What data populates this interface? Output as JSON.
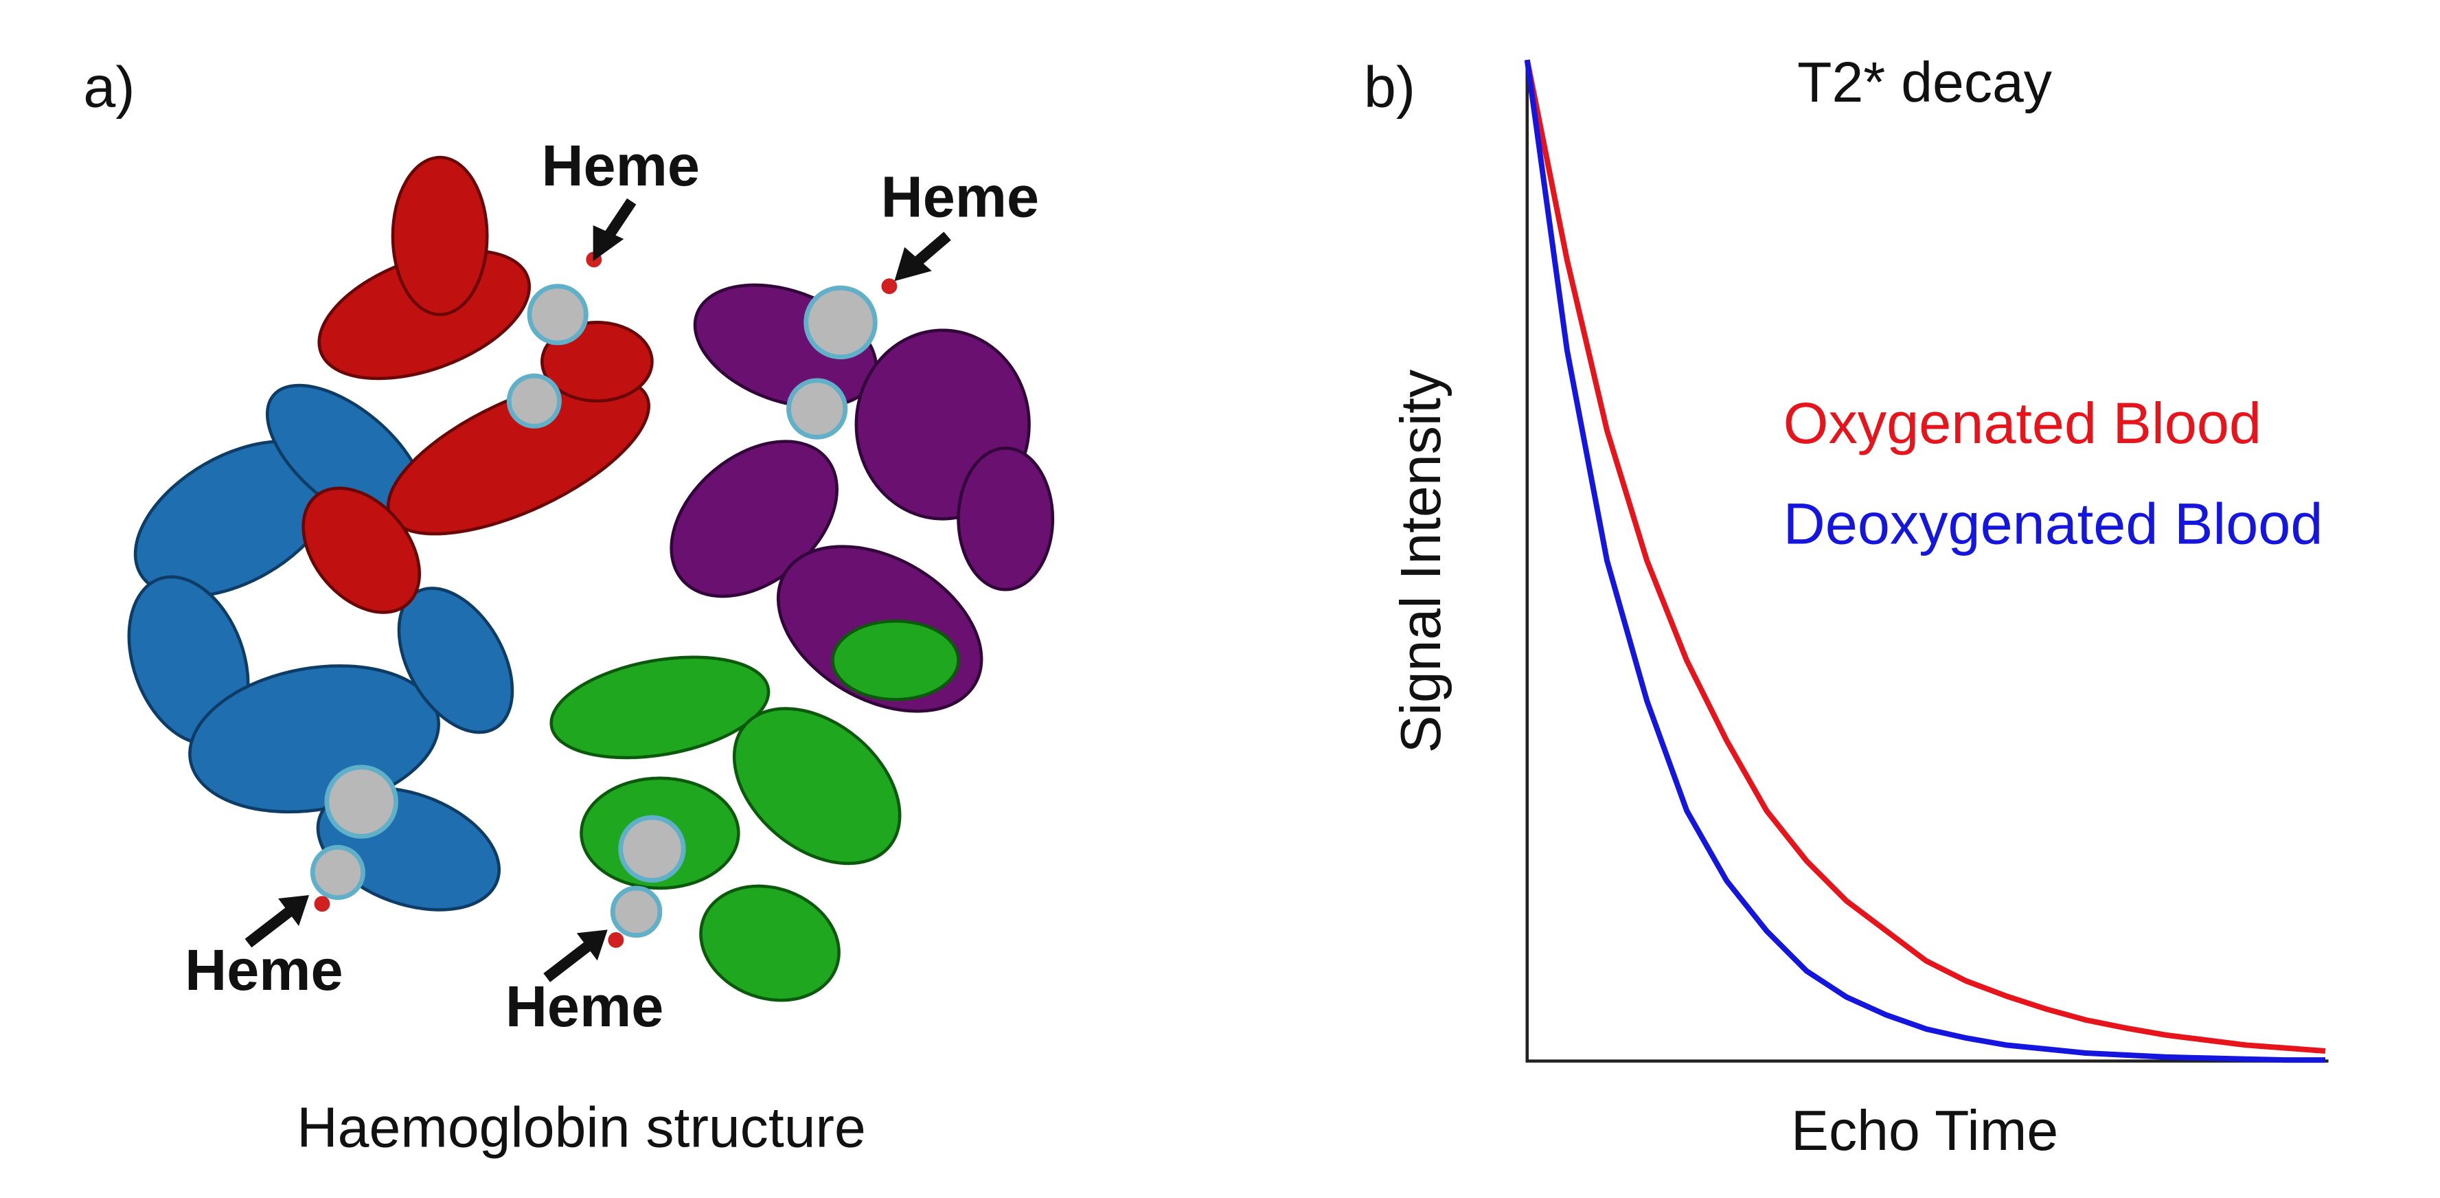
{
  "panel_a": {
    "label": "a)",
    "caption": "Haemoglobin structure",
    "heme_labels": [
      "Heme",
      "Heme",
      "Heme",
      "Heme"
    ]
  },
  "chart_data": {
    "type": "line",
    "panel_label": "b)",
    "title": "T2* decay",
    "x_label": "Echo Time",
    "y_label": "Signal Intensity",
    "x": [
      0,
      0.05,
      0.1,
      0.15,
      0.2,
      0.25,
      0.3,
      0.35,
      0.4,
      0.45,
      0.5,
      0.55,
      0.6,
      0.65,
      0.7,
      0.75,
      0.8,
      0.85,
      0.9,
      0.95,
      1
    ],
    "xlim": [
      0,
      1
    ],
    "ylim": [
      0,
      1
    ],
    "series": [
      {
        "name": "Oxygenated Blood",
        "color": "#e8141b",
        "values": [
          1,
          0.8,
          0.63,
          0.5,
          0.4,
          0.32,
          0.25,
          0.2,
          0.16,
          0.13,
          0.1,
          0.08,
          0.065,
          0.052,
          0.041,
          0.033,
          0.026,
          0.021,
          0.016,
          0.013,
          0.01
        ]
      },
      {
        "name": "Deoxygenated Blood",
        "color": "#1515e0",
        "values": [
          1,
          0.71,
          0.5,
          0.36,
          0.25,
          0.18,
          0.13,
          0.09,
          0.064,
          0.046,
          0.032,
          0.023,
          0.016,
          0.012,
          0.008,
          0.006,
          0.004,
          0.003,
          0.002,
          0.001,
          0.001
        ]
      }
    ]
  }
}
